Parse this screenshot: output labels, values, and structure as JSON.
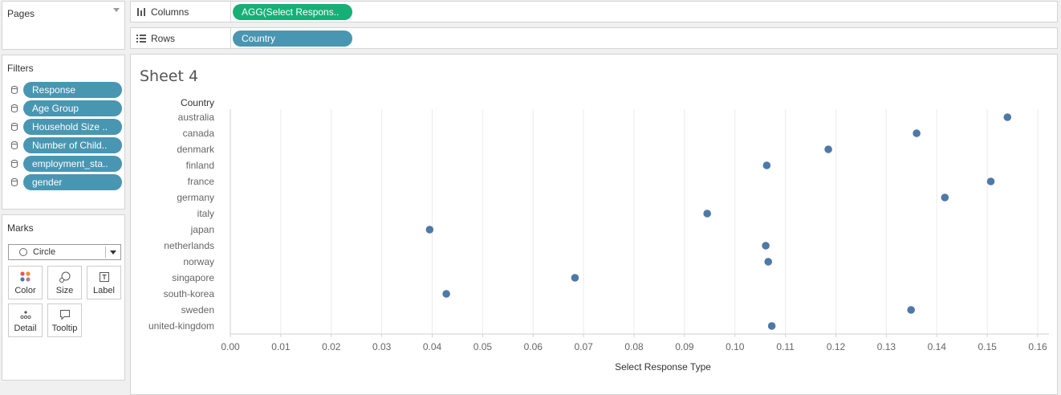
{
  "pages": {
    "title": "Pages"
  },
  "filters": {
    "title": "Filters",
    "items": [
      "Response",
      "Age Group",
      "Household Size ..",
      "Number of Child..",
      "employment_sta..",
      "gender"
    ]
  },
  "marks": {
    "title": "Marks",
    "type": "Circle",
    "buttons": {
      "color": "Color",
      "size": "Size",
      "label": "Label",
      "detail": "Detail",
      "tooltip": "Tooltip"
    }
  },
  "shelves": {
    "columns": {
      "label": "Columns",
      "pill": "AGG(Select Respons.."
    },
    "rows": {
      "label": "Rows",
      "pill": "Country"
    }
  },
  "sheet": {
    "title": "Sheet 4"
  },
  "chart_data": {
    "type": "scatter",
    "row_header": "Country",
    "xlabel": "Select Response Type",
    "xlim": [
      0,
      0.16
    ],
    "xticks": [
      "0.00",
      "0.01",
      "0.02",
      "0.03",
      "0.04",
      "0.05",
      "0.06",
      "0.07",
      "0.08",
      "0.09",
      "0.10",
      "0.11",
      "0.12",
      "0.13",
      "0.14",
      "0.15",
      "0.16"
    ],
    "categories": [
      "australia",
      "canada",
      "denmark",
      "finland",
      "france",
      "germany",
      "italy",
      "japan",
      "netherlands",
      "norway",
      "singapore",
      "south-korea",
      "sweden",
      "united-kingdom"
    ],
    "values": [
      0.154,
      0.136,
      0.1185,
      0.1063,
      0.1507,
      0.1416,
      0.0945,
      0.0395,
      0.1061,
      0.1066,
      0.0683,
      0.0428,
      0.1349,
      0.1073
    ],
    "grid": true,
    "colors": {
      "point": "#4e79a7",
      "grid": "#ececec",
      "axis": "#d0d0d0"
    }
  }
}
